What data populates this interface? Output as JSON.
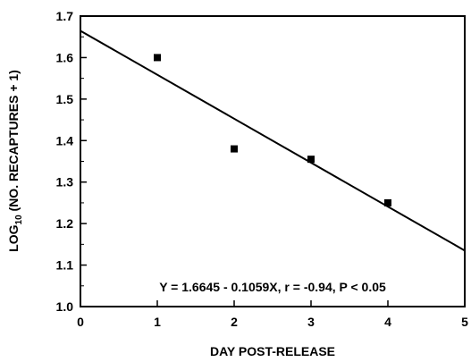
{
  "chart_data": {
    "type": "scatter",
    "title": "",
    "xlabel": "DAY POST-RELEASE",
    "ylabel": {
      "prefix": "LOG",
      "subscript": "10",
      "suffix": " (NO. RECAPTURES + 1)"
    },
    "xlim": [
      0,
      5
    ],
    "ylim": [
      1.0,
      1.7
    ],
    "x_ticks": [
      0,
      1,
      2,
      3,
      4,
      5
    ],
    "x_tick_labels": [
      "0",
      "1",
      "2",
      "3",
      "4",
      "5"
    ],
    "y_ticks": [
      1.0,
      1.1,
      1.2,
      1.3,
      1.4,
      1.5,
      1.6,
      1.7
    ],
    "y_tick_labels": [
      "1.0",
      "1.1",
      "1.2",
      "1.3",
      "1.4",
      "1.5",
      "1.6",
      "1.7"
    ],
    "grid": false,
    "series": [
      {
        "x": [
          1,
          2,
          3,
          4
        ],
        "y": [
          1.6,
          1.38,
          1.355,
          1.25
        ],
        "marker": "square",
        "color": "#000000"
      }
    ],
    "regression": {
      "intercept": 1.6645,
      "slope": -0.1059,
      "x_range": [
        0,
        5
      ],
      "color": "#000000"
    },
    "annotation": "Y = 1.6645 - 0.1059X, r = -0.94, P < 0.05"
  }
}
